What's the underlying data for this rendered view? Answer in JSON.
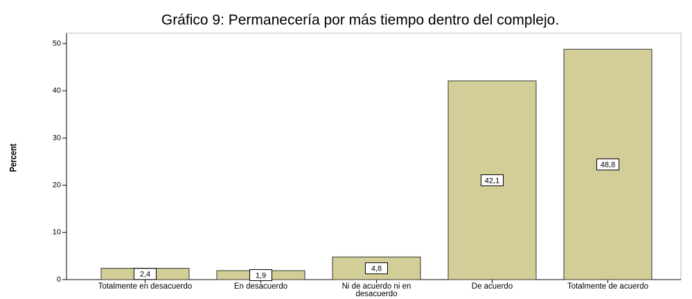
{
  "chart_data": {
    "type": "bar",
    "title": "Gráfico 9: Permanecería por más tiempo dentro del complejo.",
    "y_label": "Percent",
    "categories": [
      "Totalmente en desacuerdo",
      "En desacuerdo",
      "Ni de acuerdo ni en desacuerdo",
      "De acuerdo",
      "Totalmente de acuerdo"
    ],
    "values": [
      2.4,
      1.9,
      4.8,
      42.1,
      48.8
    ],
    "value_labels": [
      "2,4",
      "1,9",
      "4,8",
      "42,1",
      "48,8"
    ],
    "color": "#d3ce97",
    "ylim": [
      0,
      52.2
    ],
    "yticks": [
      0,
      10,
      20,
      30,
      40,
      50
    ],
    "grid": false
  }
}
